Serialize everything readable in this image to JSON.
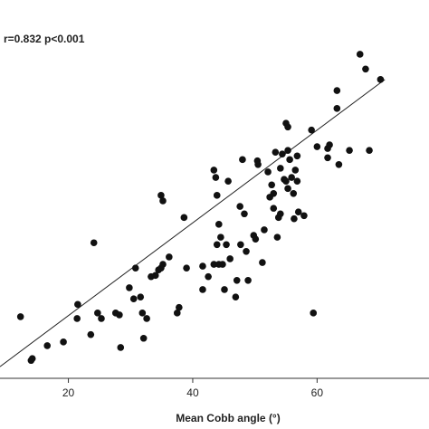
{
  "chart_data": {
    "type": "scatter",
    "annotation": "r=0.832 p<0.001",
    "x_label": "Mean Cobb angle  (°)",
    "color": "#111111",
    "xlim": [
      9,
      78
    ],
    "xticks": [
      20,
      40,
      60
    ],
    "ylim": [
      10,
      67
    ],
    "fit_line": {
      "x": [
        9,
        70.9
      ],
      "y": [
        11.9,
        58.5
      ]
    },
    "x": [
      12.3,
      14.0,
      14.2,
      16.6,
      19.2,
      21.5,
      21.4,
      23.6,
      24.1,
      24.7,
      25.3,
      27.6,
      28.4,
      28.2,
      29.8,
      30.8,
      30.5,
      31.6,
      31.9,
      32.1,
      32.6,
      33.3,
      34.0,
      34.5,
      34.9,
      35.2,
      34.9,
      35.2,
      36.2,
      37.8,
      37.5,
      38.6,
      39.0,
      41.6,
      41.6,
      42.5,
      43.4,
      43.7,
      43.9,
      43.9,
      44.2,
      44.5,
      43.4,
      44.2,
      44.8,
      45.1,
      45.4,
      45.7,
      46.0,
      46.9,
      47.1,
      47.6,
      47.7,
      48.0,
      48.3,
      48.6,
      48.9,
      49.8,
      50.1,
      50.4,
      50.5,
      51.2,
      51.5,
      52.1,
      52.4,
      52.7,
      53.0,
      53.0,
      53.3,
      53.6,
      53.8,
      54.1,
      54.1,
      54.4,
      54.7,
      55.0,
      55.3,
      55.3,
      55.6,
      55.9,
      56.2,
      56.3,
      56.5,
      56.8,
      56.8,
      57.0,
      57.9,
      55.0,
      55.3,
      59.1,
      59.4,
      60.0,
      61.7,
      61.7,
      62.0,
      63.5,
      63.2,
      63.2,
      65.2,
      66.9,
      67.8,
      68.4,
      70.2
    ],
    "y": [
      20.0,
      12.9,
      13.2,
      15.3,
      15.9,
      22.0,
      19.7,
      17.1,
      32.0,
      20.6,
      19.7,
      20.6,
      15.0,
      20.3,
      24.7,
      27.9,
      22.9,
      23.2,
      20.6,
      16.5,
      19.7,
      26.5,
      26.7,
      27.6,
      27.9,
      28.5,
      39.7,
      38.8,
      29.7,
      21.5,
      20.6,
      36.1,
      27.9,
      28.2,
      24.4,
      26.5,
      43.8,
      42.6,
      39.7,
      31.7,
      35.0,
      32.9,
      28.5,
      28.5,
      28.5,
      24.4,
      31.7,
      42.0,
      29.4,
      23.2,
      25.9,
      37.9,
      31.7,
      45.5,
      36.7,
      30.6,
      25.9,
      33.2,
      32.6,
      45.3,
      44.7,
      28.8,
      34.1,
      43.5,
      39.4,
      41.4,
      40.0,
      37.6,
      46.7,
      32.9,
      36.1,
      36.7,
      44.1,
      46.4,
      42.3,
      42.0,
      47.0,
      40.8,
      45.5,
      42.6,
      40.0,
      35.9,
      43.8,
      42.0,
      46.1,
      37.0,
      36.4,
      51.4,
      50.8,
      50.3,
      20.6,
      47.6,
      47.3,
      45.8,
      47.9,
      44.7,
      56.7,
      53.8,
      47.0,
      62.6,
      60.2,
      47.0,
      58.5
    ]
  }
}
